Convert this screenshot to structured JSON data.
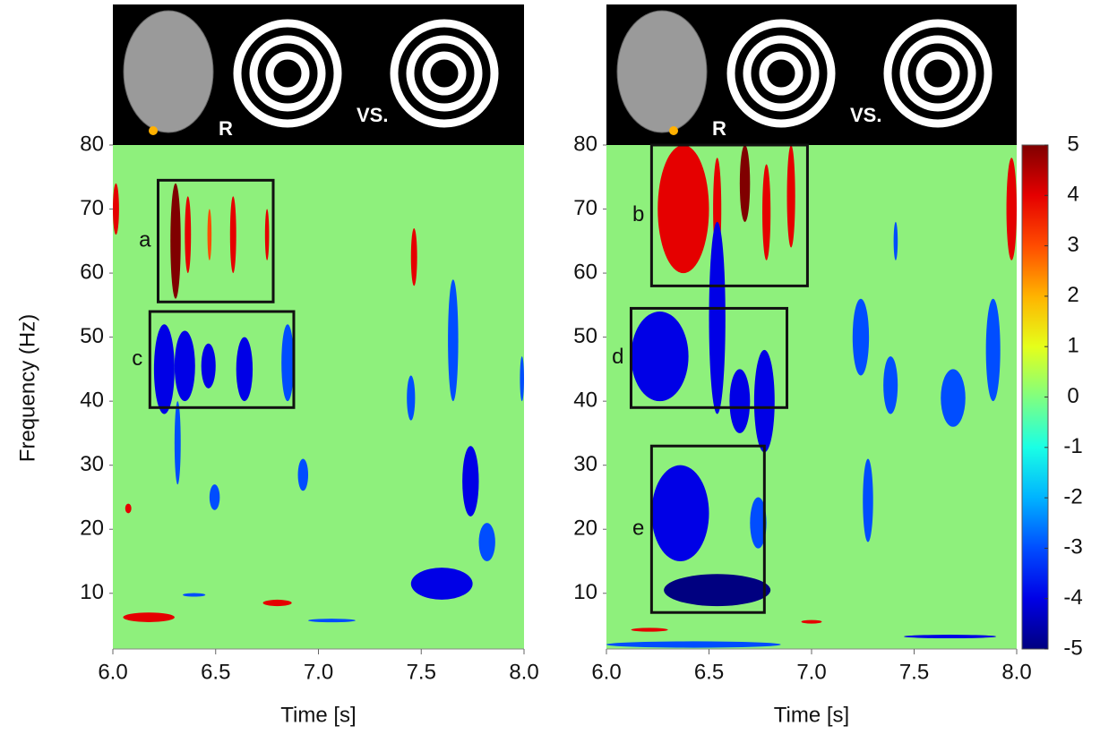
{
  "chart_data": [
    {
      "type": "heatmap",
      "x_label": "Time [s]",
      "y_label": "Frequency (Hz)",
      "stimulus": {
        "side_label": "R",
        "contrast_label": "VS."
      },
      "xlim": [
        6,
        8
      ],
      "ylim": [
        1.3,
        80
      ],
      "xticks": [
        {
          "value": 6,
          "label": "6.0"
        },
        6.5,
        {
          "value": 7,
          "label": "7.0"
        },
        7.5,
        {
          "value": 8,
          "label": "8.0"
        }
      ],
      "yticks": [
        10,
        20,
        30,
        40,
        50,
        60,
        70,
        80
      ],
      "background": "#8ef07c",
      "boxes": [
        {
          "label": "a",
          "x": [
            6.22,
            6.78
          ],
          "y": [
            55.5,
            74.5
          ]
        },
        {
          "label": "c",
          "x": [
            6.18,
            6.88
          ],
          "y": [
            39,
            54
          ]
        }
      ],
      "blobs": [
        {
          "x": [
            6.28,
            6.33
          ],
          "y": [
            56,
            74
          ],
          "value": 5
        },
        {
          "x": [
            6.35,
            6.38
          ],
          "y": [
            60,
            72
          ],
          "value": 4
        },
        {
          "x": [
            6.46,
            6.48
          ],
          "y": [
            62,
            70
          ],
          "value": 3
        },
        {
          "x": [
            6.57,
            6.6
          ],
          "y": [
            60,
            72
          ],
          "value": 4
        },
        {
          "x": [
            6.74,
            6.76
          ],
          "y": [
            62,
            70
          ],
          "value": 4
        },
        {
          "x": [
            7.45,
            7.48
          ],
          "y": [
            58,
            67
          ],
          "value": 4
        },
        {
          "x": [
            6.0,
            6.03
          ],
          "y": [
            66,
            74
          ],
          "value": 4
        },
        {
          "x": [
            6.05,
            6.3
          ],
          "y": [
            5.5,
            7
          ],
          "value": 4
        },
        {
          "x": [
            6.73,
            6.87
          ],
          "y": [
            8,
            9
          ],
          "value": 4
        },
        {
          "x": [
            6.06,
            6.09
          ],
          "y": [
            22.5,
            24
          ],
          "value": 4
        },
        {
          "x": [
            6.2,
            6.3
          ],
          "y": [
            38,
            52
          ],
          "value": -4
        },
        {
          "x": [
            6.3,
            6.4
          ],
          "y": [
            40,
            51
          ],
          "value": -4
        },
        {
          "x": [
            6.43,
            6.5
          ],
          "y": [
            42,
            49
          ],
          "value": -4
        },
        {
          "x": [
            6.6,
            6.68
          ],
          "y": [
            40,
            50
          ],
          "value": -4
        },
        {
          "x": [
            6.82,
            6.88
          ],
          "y": [
            40,
            52
          ],
          "value": -3
        },
        {
          "x": [
            6.3,
            6.33
          ],
          "y": [
            27,
            40
          ],
          "value": -3
        },
        {
          "x": [
            6.47,
            6.52
          ],
          "y": [
            23,
            27
          ],
          "value": -3
        },
        {
          "x": [
            7.45,
            7.75
          ],
          "y": [
            9,
            14
          ],
          "value": -4
        },
        {
          "x": [
            7.7,
            7.78
          ],
          "y": [
            22,
            33
          ],
          "value": -4
        },
        {
          "x": [
            7.78,
            7.86
          ],
          "y": [
            15,
            21
          ],
          "value": -3
        },
        {
          "x": [
            7.63,
            7.68
          ],
          "y": [
            40,
            59
          ],
          "value": -3
        },
        {
          "x": [
            6.34,
            6.45
          ],
          "y": [
            9.5,
            10
          ],
          "value": -3
        },
        {
          "x": [
            6.95,
            7.18
          ],
          "y": [
            5.5,
            6
          ],
          "value": -3
        },
        {
          "x": [
            6.9,
            6.95
          ],
          "y": [
            26,
            31
          ],
          "value": -3
        },
        {
          "x": [
            7.43,
            7.47
          ],
          "y": [
            37,
            44
          ],
          "value": -3
        },
        {
          "x": [
            7.98,
            8.0
          ],
          "y": [
            40,
            47
          ],
          "value": -3
        }
      ]
    },
    {
      "type": "heatmap",
      "x_label": "Time [s]",
      "stimulus": {
        "side_label": "R",
        "contrast_label": "VS."
      },
      "xlim": [
        6,
        8
      ],
      "ylim": [
        1.3,
        80
      ],
      "xticks": [
        {
          "value": 6,
          "label": "6.0"
        },
        6.5,
        {
          "value": 7,
          "label": "7.0"
        },
        7.5,
        {
          "value": 8,
          "label": "8.0"
        }
      ],
      "yticks": [
        10,
        20,
        30,
        40,
        50,
        60,
        70,
        80
      ],
      "background": "#8ef07c",
      "colorbar": {
        "lim": [
          -5,
          5
        ],
        "ticks": [
          5,
          4,
          3,
          2,
          1,
          0,
          -1,
          -2,
          -3,
          -4,
          -5
        ]
      },
      "boxes": [
        {
          "label": "b",
          "x": [
            6.22,
            6.98
          ],
          "y": [
            58,
            80
          ]
        },
        {
          "label": "d",
          "x": [
            6.12,
            6.88
          ],
          "y": [
            39,
            54.5
          ]
        },
        {
          "label": "e",
          "x": [
            6.22,
            6.77
          ],
          "y": [
            7,
            33
          ]
        }
      ],
      "blobs": [
        {
          "x": [
            6.25,
            6.5
          ],
          "y": [
            60,
            80
          ],
          "value": 4
        },
        {
          "x": [
            6.52,
            6.56
          ],
          "y": [
            62,
            78
          ],
          "value": 4
        },
        {
          "x": [
            6.65,
            6.7
          ],
          "y": [
            68,
            80
          ],
          "value": 5
        },
        {
          "x": [
            6.76,
            6.8
          ],
          "y": [
            62,
            77
          ],
          "value": 4
        },
        {
          "x": [
            6.88,
            6.92
          ],
          "y": [
            64,
            80
          ],
          "value": 4
        },
        {
          "x": [
            7.95,
            8.0
          ],
          "y": [
            62,
            78
          ],
          "value": 4
        },
        {
          "x": [
            6.12,
            6.3
          ],
          "y": [
            4,
            4.6
          ],
          "value": 4
        },
        {
          "x": [
            6.95,
            7.05
          ],
          "y": [
            5.3,
            5.8
          ],
          "value": 4
        },
        {
          "x": [
            6.12,
            6.4
          ],
          "y": [
            40,
            54
          ],
          "value": -4
        },
        {
          "x": [
            6.5,
            6.58
          ],
          "y": [
            38,
            68
          ],
          "value": -4
        },
        {
          "x": [
            6.6,
            6.7
          ],
          "y": [
            35,
            45
          ],
          "value": -4
        },
        {
          "x": [
            6.72,
            6.82
          ],
          "y": [
            32,
            48
          ],
          "value": -4
        },
        {
          "x": [
            6.22,
            6.5
          ],
          "y": [
            15,
            30
          ],
          "value": -4
        },
        {
          "x": [
            6.28,
            6.8
          ],
          "y": [
            8,
            13
          ],
          "value": -5
        },
        {
          "x": [
            6.7,
            6.78
          ],
          "y": [
            17,
            25
          ],
          "value": -3
        },
        {
          "x": [
            7.25,
            7.3
          ],
          "y": [
            18,
            31
          ],
          "value": -3
        },
        {
          "x": [
            7.35,
            7.42
          ],
          "y": [
            38,
            47
          ],
          "value": -3
        },
        {
          "x": [
            7.63,
            7.75
          ],
          "y": [
            36,
            45
          ],
          "value": -3
        },
        {
          "x": [
            7.85,
            7.92
          ],
          "y": [
            40,
            56
          ],
          "value": -3
        },
        {
          "x": [
            7.4,
            7.42
          ],
          "y": [
            62,
            68
          ],
          "value": -3
        },
        {
          "x": [
            6.0,
            6.85
          ],
          "y": [
            1.5,
            2.5
          ],
          "value": -3
        },
        {
          "x": [
            7.45,
            7.9
          ],
          "y": [
            3,
            3.5
          ],
          "value": -4
        },
        {
          "x": [
            7.2,
            7.28
          ],
          "y": [
            44,
            56
          ],
          "value": -3
        }
      ]
    }
  ]
}
